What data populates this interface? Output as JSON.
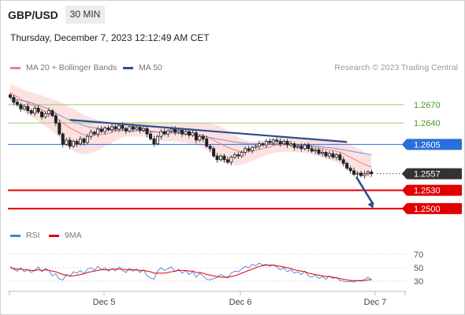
{
  "header": {
    "symbol": "GBP/USD",
    "timeframe": "30 MIN",
    "timestamp": "Thursday, December 7, 2023 12:12:49 AM CET",
    "credit": "Research © 2023 Trading Central"
  },
  "colors": {
    "bollinger_band": "#fcdcdc",
    "ma20": "#f08080",
    "ma50": "#7b90d0",
    "candle": "#222222",
    "resistance": "#9ccc65",
    "pivot": "#2a6fdb",
    "support": "#e00000",
    "trendline": "#2a4f8f",
    "rsi": "#4a7fd6",
    "rsi_ma": "#e00000"
  },
  "chart_data": [
    {
      "type": "candlestick",
      "ylim": [
        1.2478,
        1.2702
      ],
      "x_ticks": [
        "Dec 5",
        "Dec 6",
        "Dec 7"
      ],
      "legend": [
        {
          "name": "MA 20 + Bollinger Bands",
          "color": "#f08080"
        },
        {
          "name": "MA 50",
          "color": "#2a4f8f"
        }
      ],
      "levels": [
        {
          "label": "1.2670",
          "value": 1.267,
          "kind": "resistance"
        },
        {
          "label": "1.2640",
          "value": 1.264,
          "kind": "resistance"
        },
        {
          "label": "1.2605",
          "value": 1.2605,
          "kind": "pivot"
        },
        {
          "label": "1.2557",
          "value": 1.2557,
          "kind": "last"
        },
        {
          "label": "1.2530",
          "value": 1.253,
          "kind": "support"
        },
        {
          "label": "1.2500",
          "value": 1.25,
          "kind": "support"
        }
      ],
      "close": [
        1.2682,
        1.2674,
        1.267,
        1.2663,
        1.2667,
        1.266,
        1.2656,
        1.2664,
        1.2658,
        1.265,
        1.2655,
        1.266,
        1.2652,
        1.264,
        1.2622,
        1.2605,
        1.2612,
        1.2602,
        1.261,
        1.2606,
        1.2614,
        1.2608,
        1.2618,
        1.2625,
        1.2622,
        1.263,
        1.2626,
        1.2632,
        1.2629,
        1.2634,
        1.263,
        1.2636,
        1.2631,
        1.2627,
        1.2634,
        1.263,
        1.2633,
        1.2628,
        1.2631,
        1.2622,
        1.2614,
        1.2606,
        1.2618,
        1.2626,
        1.2622,
        1.2627,
        1.263,
        1.2625,
        1.2628,
        1.2622,
        1.2626,
        1.262,
        1.2624,
        1.2612,
        1.2618,
        1.2614,
        1.2602,
        1.2598,
        1.2586,
        1.258,
        1.2586,
        1.258,
        1.2576,
        1.2584,
        1.2588,
        1.2586,
        1.2592,
        1.2598,
        1.2595,
        1.26,
        1.2602,
        1.2606,
        1.2604,
        1.261,
        1.2608,
        1.2612,
        1.261,
        1.2606,
        1.261,
        1.2604,
        1.2606,
        1.26,
        1.2602,
        1.2598,
        1.2604,
        1.2598,
        1.2594,
        1.2596,
        1.259,
        1.2592,
        1.2586,
        1.259,
        1.2584,
        1.2588,
        1.258,
        1.2574,
        1.2566,
        1.2562,
        1.2556,
        1.2558,
        1.2554,
        1.2557,
        1.256,
        1.2557
      ],
      "ma20": [
        1.269,
        1.2686,
        1.2683,
        1.2679,
        1.2676,
        1.2673,
        1.267,
        1.2668,
        1.2665,
        1.2662,
        1.2659,
        1.2656,
        1.2653,
        1.2649,
        1.2645,
        1.264,
        1.2636,
        1.2632,
        1.2629,
        1.2626,
        1.2623,
        1.2621,
        1.262,
        1.262,
        1.262,
        1.262,
        1.2621,
        1.2622,
        1.2623,
        1.2625,
        1.2626,
        1.2628,
        1.2629,
        1.263,
        1.263,
        1.263,
        1.263,
        1.263,
        1.263,
        1.2629,
        1.2627,
        1.2626,
        1.2625,
        1.2625,
        1.2625,
        1.2625,
        1.2625,
        1.2625,
        1.2625,
        1.2624,
        1.2624,
        1.2623,
        1.2623,
        1.2622,
        1.2621,
        1.262,
        1.2618,
        1.2615,
        1.2612,
        1.2609,
        1.2606,
        1.2603,
        1.26,
        1.2598,
        1.2596,
        1.2594,
        1.2593,
        1.2593,
        1.2593,
        1.2594,
        1.2595,
        1.2597,
        1.2598,
        1.26,
        1.2601,
        1.2603,
        1.2604,
        1.2604,
        1.2605,
        1.2605,
        1.2605,
        1.2604,
        1.2604,
        1.2603,
        1.2603,
        1.2602,
        1.2601,
        1.26,
        1.2599,
        1.2598,
        1.2597,
        1.2596,
        1.2595,
        1.2594,
        1.2592,
        1.259,
        1.2587,
        1.2584,
        1.2581,
        1.2578,
        1.2575,
        1.2572,
        1.257,
        1.2568
      ],
      "band_width": [
        0.0014,
        0.0015,
        0.0016,
        0.0017,
        0.0018,
        0.0019,
        0.002,
        0.0021,
        0.0022,
        0.0023,
        0.0024,
        0.0025,
        0.0026,
        0.0028,
        0.003,
        0.0032,
        0.0033,
        0.0034,
        0.0034,
        0.0034,
        0.0033,
        0.0032,
        0.0031,
        0.0029,
        0.0027,
        0.0025,
        0.0023,
        0.0021,
        0.0019,
        0.0017,
        0.0015,
        0.0014,
        0.0013,
        0.0012,
        0.0012,
        0.0012,
        0.0012,
        0.0012,
        0.0012,
        0.0013,
        0.0013,
        0.0014,
        0.0014,
        0.0014,
        0.0015,
        0.0015,
        0.0015,
        0.0015,
        0.0016,
        0.0016,
        0.0016,
        0.0017,
        0.0017,
        0.0018,
        0.0019,
        0.002,
        0.0022,
        0.0024,
        0.0026,
        0.0027,
        0.0028,
        0.0028,
        0.0027,
        0.0026,
        0.0025,
        0.0023,
        0.0021,
        0.0019,
        0.0017,
        0.0016,
        0.0015,
        0.0014,
        0.0013,
        0.0012,
        0.0012,
        0.0012,
        0.0012,
        0.0012,
        0.0012,
        0.0012,
        0.0012,
        0.0012,
        0.0012,
        0.0012,
        0.0012,
        0.0012,
        0.0012,
        0.0013,
        0.0013,
        0.0014,
        0.0015,
        0.0016,
        0.0017,
        0.0018,
        0.0019,
        0.002,
        0.0021,
        0.0021,
        0.0021,
        0.0021,
        0.0021,
        0.002,
        0.0019,
        0.0018
      ],
      "ma50": [
        1.268,
        1.2679,
        1.2678,
        1.2677,
        1.2676,
        1.2675,
        1.2673,
        1.2671,
        1.2669,
        1.2667,
        1.2665,
        1.2662,
        1.2659,
        1.2656,
        1.2653,
        1.265,
        1.2647,
        1.2645,
        1.2642,
        1.264,
        1.2638,
        1.2636,
        1.2634,
        1.2633,
        1.2632,
        1.2631,
        1.263,
        1.2629,
        1.2629,
        1.2628,
        1.2628,
        1.2628,
        1.2627,
        1.2627,
        1.2627,
        1.2627,
        1.2627,
        1.2627,
        1.2627,
        1.2626,
        1.2626,
        1.2625,
        1.2625,
        1.2625,
        1.2624,
        1.2624,
        1.2624,
        1.2623,
        1.2623,
        1.2622,
        1.2622,
        1.2621,
        1.2621,
        1.262,
        1.2619,
        1.2618,
        1.2617,
        1.2616,
        1.2615,
        1.2614,
        1.2613,
        1.2612,
        1.2611,
        1.261,
        1.2609,
        1.2608,
        1.2607,
        1.2607,
        1.2606,
        1.2606,
        1.2606,
        1.2606,
        1.2606,
        1.2606,
        1.2606,
        1.2606,
        1.2606,
        1.2606,
        1.2606,
        1.2605,
        1.2605,
        1.2605,
        1.2604,
        1.2604,
        1.2604,
        1.2603,
        1.2603,
        1.2602,
        1.2602,
        1.2601,
        1.26,
        1.26,
        1.2599,
        1.2598,
        1.2597,
        1.2596,
        1.2595,
        1.2594,
        1.2593,
        1.2592,
        1.2591,
        1.259,
        1.2589,
        1.2588
      ],
      "trendline": {
        "from": [
          17,
          1.2645
        ],
        "to": [
          96,
          1.2609
        ]
      },
      "projection_arrow": {
        "from": [
          98,
          1.2557
        ],
        "to": [
          104,
          1.25
        ]
      }
    },
    {
      "type": "line",
      "ylim": [
        22,
        78
      ],
      "y_ticks": [
        70,
        50,
        30
      ],
      "legend": [
        {
          "name": "RSI",
          "color": "#4a7fd6"
        },
        {
          "name": "9MA",
          "color": "#e00000"
        }
      ],
      "rsi": [
        52,
        48,
        45,
        50,
        44,
        47,
        43,
        46,
        51,
        44,
        49,
        46,
        38,
        41,
        33,
        32,
        40,
        37,
        44,
        42,
        46,
        41,
        48,
        50,
        46,
        52,
        47,
        50,
        45,
        49,
        45,
        51,
        46,
        43,
        49,
        45,
        48,
        43,
        47,
        38,
        35,
        33,
        45,
        50,
        46,
        49,
        51,
        44,
        48,
        42,
        46,
        40,
        44,
        36,
        42,
        38,
        33,
        32,
        34,
        36,
        40,
        37,
        35,
        42,
        45,
        44,
        48,
        52,
        50,
        55,
        53,
        57,
        54,
        55,
        52,
        54,
        51,
        47,
        50,
        44,
        47,
        42,
        44,
        40,
        45,
        38,
        36,
        39,
        34,
        37,
        33,
        38,
        34,
        36,
        31,
        30,
        29,
        30,
        29,
        31,
        30,
        33,
        36,
        33
      ],
      "rsi_ma": [
        50,
        49,
        48,
        48,
        47,
        47,
        46,
        46,
        47,
        46,
        47,
        46,
        45,
        44,
        42,
        40,
        39,
        38,
        38,
        39,
        40,
        41,
        43,
        44,
        45,
        46,
        47,
        47,
        47,
        48,
        48,
        48,
        48,
        47,
        47,
        47,
        47,
        46,
        46,
        45,
        44,
        42,
        42,
        42,
        42,
        43,
        44,
        45,
        46,
        46,
        46,
        45,
        45,
        43,
        43,
        42,
        40,
        39,
        38,
        37,
        36,
        36,
        36,
        37,
        38,
        40,
        42,
        44,
        46,
        48,
        50,
        52,
        53,
        54,
        54,
        54,
        53,
        52,
        51,
        50,
        49,
        47,
        46,
        45,
        44,
        42,
        41,
        40,
        39,
        38,
        37,
        37,
        36,
        35,
        34,
        33,
        32,
        31,
        31,
        31,
        31,
        31,
        32,
        32
      ]
    }
  ]
}
